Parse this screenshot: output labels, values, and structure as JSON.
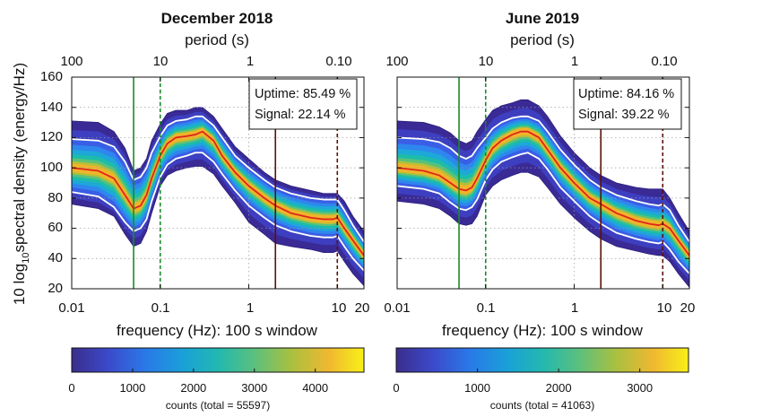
{
  "chart_data": [
    {
      "type": "area",
      "title": "December 2018",
      "xlabel": "frequency (Hz): 100 s window",
      "ylabel": "10 log10 spectral density (energy/Hz)",
      "top_axis_label": "period (s)",
      "x_scale": "log",
      "xlim": [
        0.01,
        20
      ],
      "ylim": [
        20,
        160
      ],
      "x_ticks": [
        "0.01",
        "0.1",
        "1",
        "10",
        "20"
      ],
      "y_ticks": [
        "20",
        "40",
        "60",
        "80",
        "100",
        "120",
        "140",
        "160"
      ],
      "top_ticks": [
        "100",
        "10",
        "1",
        "0.10"
      ],
      "grid": true,
      "stats": {
        "uptime": "Uptime: 85.49 %",
        "signal": "Signal: 22.14 %"
      },
      "vertical_lines_hz": [
        {
          "x": 0.05,
          "color": "#1a8a2a",
          "style": "solid"
        },
        {
          "x": 0.1,
          "color": "#1a8a2a",
          "style": "dashed"
        },
        {
          "x": 2,
          "color": "#5a1208",
          "style": "solid"
        },
        {
          "x": 10,
          "color": "#5a1208",
          "style": "dashed"
        }
      ],
      "freq": [
        0.01,
        0.02,
        0.03,
        0.04,
        0.05,
        0.06,
        0.07,
        0.08,
        0.1,
        0.12,
        0.15,
        0.2,
        0.25,
        0.3,
        0.4,
        0.5,
        0.7,
        1,
        1.5,
        2,
        3,
        5,
        7,
        9,
        10,
        12,
        15,
        20
      ],
      "median": [
        100,
        98,
        93,
        82,
        73,
        75,
        82,
        93,
        108,
        116,
        120,
        121,
        122,
        124,
        118,
        108,
        97,
        88,
        80,
        75,
        70,
        67,
        66,
        66,
        67,
        60,
        52,
        42
      ],
      "upper_pct": [
        119,
        118,
        114,
        104,
        92,
        94,
        100,
        110,
        121,
        128,
        131,
        132,
        134,
        134,
        128,
        120,
        108,
        100,
        92,
        87,
        83,
        80,
        79,
        79,
        79,
        72,
        62,
        51
      ],
      "lower_pct": [
        84,
        81,
        74,
        64,
        58,
        60,
        66,
        78,
        94,
        102,
        106,
        108,
        110,
        110,
        104,
        96,
        85,
        75,
        67,
        62,
        58,
        55,
        54,
        54,
        55,
        48,
        40,
        32
      ],
      "envelope_top": [
        131,
        130,
        124,
        113,
        98,
        100,
        106,
        118,
        129,
        136,
        138,
        138,
        140,
        140,
        134,
        126,
        114,
        106,
        97,
        92,
        88,
        85,
        83,
        83,
        83,
        78,
        68,
        58
      ],
      "envelope_bottom": [
        76,
        73,
        68,
        56,
        48,
        50,
        58,
        70,
        88,
        95,
        98,
        100,
        101,
        101,
        96,
        88,
        77,
        64,
        56,
        50,
        48,
        46,
        44,
        44,
        45,
        38,
        30,
        22
      ],
      "colorbar": {
        "min": 0,
        "max": 4800,
        "ticks": [
          "0",
          "1000",
          "2000",
          "3000",
          "4000"
        ],
        "label": "counts (total = 55597)"
      }
    },
    {
      "type": "area",
      "title": "June 2019",
      "xlabel": "frequency (Hz): 100 s window",
      "top_axis_label": "period (s)",
      "x_scale": "log",
      "xlim": [
        0.01,
        20
      ],
      "ylim": [
        20,
        160
      ],
      "x_ticks": [
        "0.01",
        "0.1",
        "1",
        "10",
        "20"
      ],
      "top_ticks": [
        "100",
        "10",
        "1",
        "0.10"
      ],
      "grid": true,
      "stats": {
        "uptime": "Uptime: 84.16 %",
        "signal": "Signal: 39.22 %"
      },
      "vertical_lines_hz": [
        {
          "x": 0.05,
          "color": "#1a8a2a",
          "style": "solid"
        },
        {
          "x": 0.1,
          "color": "#1a8a2a",
          "style": "dashed"
        },
        {
          "x": 2,
          "color": "#5a1208",
          "style": "solid"
        },
        {
          "x": 10,
          "color": "#5a1208",
          "style": "dashed"
        }
      ],
      "freq": [
        0.01,
        0.02,
        0.03,
        0.04,
        0.05,
        0.06,
        0.07,
        0.08,
        0.1,
        0.12,
        0.15,
        0.2,
        0.25,
        0.3,
        0.4,
        0.5,
        0.7,
        1,
        1.5,
        2,
        3,
        5,
        7,
        9,
        10,
        12,
        15,
        20
      ],
      "median": [
        100,
        98,
        95,
        90,
        86,
        85,
        87,
        93,
        105,
        113,
        118,
        122,
        124,
        124,
        120,
        112,
        100,
        90,
        80,
        76,
        70,
        65,
        63,
        62,
        63,
        60,
        52,
        42
      ],
      "upper_pct": [
        120,
        119,
        117,
        113,
        108,
        106,
        108,
        113,
        120,
        126,
        130,
        133,
        134,
        134,
        131,
        124,
        112,
        102,
        92,
        87,
        82,
        78,
        76,
        75,
        76,
        72,
        62,
        51
      ],
      "lower_pct": [
        88,
        86,
        83,
        77,
        73,
        72,
        74,
        79,
        92,
        99,
        104,
        107,
        109,
        110,
        106,
        99,
        87,
        78,
        68,
        63,
        57,
        53,
        51,
        50,
        51,
        46,
        38,
        30
      ],
      "envelope_top": [
        131,
        130,
        127,
        123,
        118,
        116,
        118,
        124,
        132,
        138,
        141,
        143,
        145,
        145,
        141,
        134,
        121,
        110,
        100,
        95,
        90,
        87,
        86,
        86,
        86,
        80,
        70,
        58
      ],
      "envelope_bottom": [
        78,
        76,
        73,
        68,
        63,
        62,
        63,
        68,
        82,
        88,
        92,
        95,
        97,
        97,
        94,
        87,
        76,
        67,
        58,
        53,
        48,
        45,
        43,
        42,
        42,
        38,
        30,
        21
      ],
      "colorbar": {
        "min": 0,
        "max": 3600,
        "ticks": [
          "0",
          "1000",
          "2000",
          "3000"
        ],
        "label": "counts (total = 41063)"
      }
    }
  ]
}
